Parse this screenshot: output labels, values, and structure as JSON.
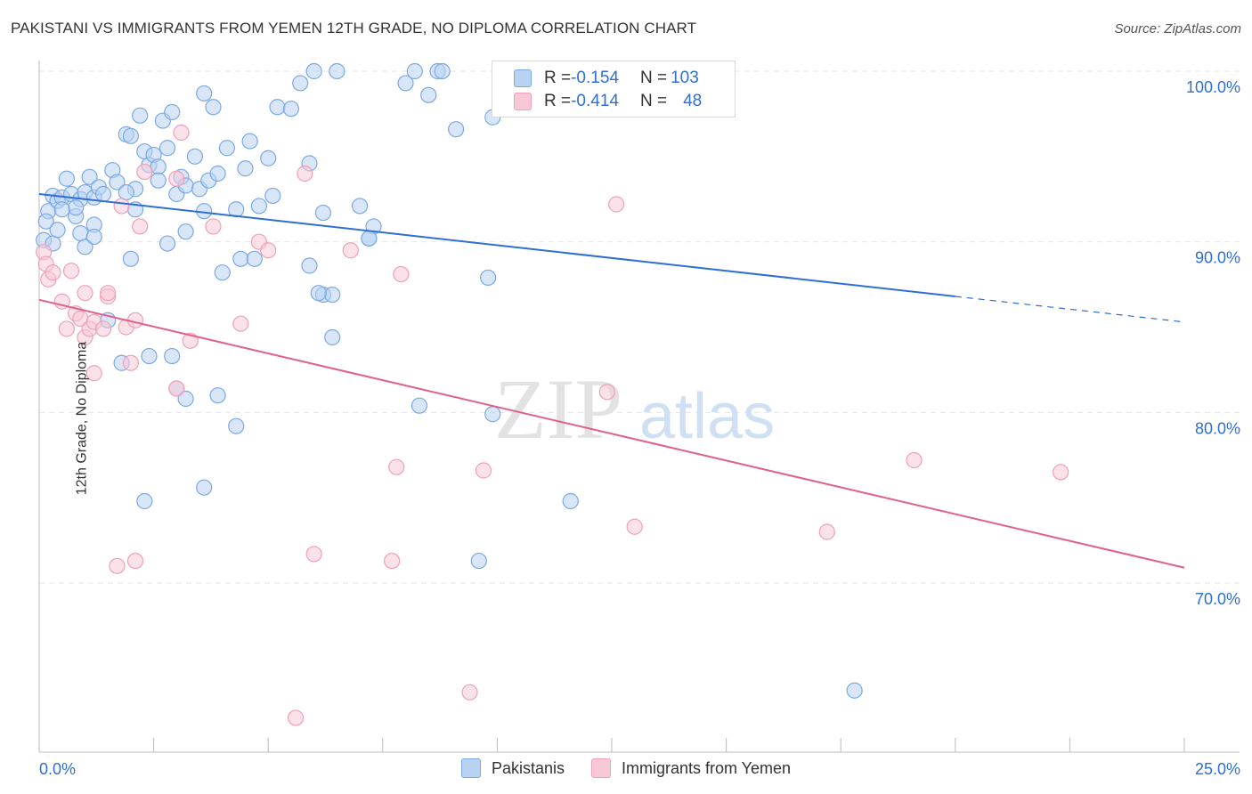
{
  "title": "PAKISTANI VS IMMIGRANTS FROM YEMEN 12TH GRADE, NO DIPLOMA CORRELATION CHART",
  "source": "Source: ZipAtlas.com",
  "watermark": {
    "zip": "ZIP",
    "atlas": "atlas"
  },
  "colors": {
    "blue": "#7aa9e6",
    "blue_fill": "#b8d2f3",
    "blue_line": "#2e6fd6",
    "pink": "#f0a0b8",
    "pink_fill": "#f8c8d6",
    "pink_line": "#e0608a",
    "tick_label": "#2e6fd6"
  },
  "legend": {
    "rows": [
      {
        "r_label": "R = ",
        "r_value": "-0.154",
        "n_label": "N = ",
        "n_value": "103"
      },
      {
        "r_label": "R = ",
        "r_value": "-0.414",
        "n_label": "N = ",
        "n_value": "48"
      }
    ]
  },
  "bottom_legend": [
    "Pakistanis",
    "Immigrants from Yemen"
  ],
  "chart_data": {
    "type": "scatter",
    "title": "PAKISTANI VS IMMIGRANTS FROM YEMEN 12TH GRADE, NO DIPLOMA CORRELATION CHART",
    "xlabel": "",
    "ylabel": "12th Grade, No Diploma",
    "xlim": [
      0,
      25
    ],
    "ylim": [
      61,
      101.5
    ],
    "x_tick_labels": [
      "0.0%",
      "25.0%"
    ],
    "y_ticks": [
      70,
      80,
      90,
      100
    ],
    "y_tick_labels": [
      "70.0%",
      "80.0%",
      "90.0%",
      "100.0%"
    ],
    "grid": true,
    "legend_position": "top-center",
    "series": [
      {
        "name": "Pakistanis",
        "r": -0.154,
        "n": 103,
        "trend": {
          "x0": 0,
          "y0": 92.8,
          "x1": 20,
          "y1": 86.8,
          "dashed_to_x": 25,
          "dashed_to_y": 85.3
        },
        "points": [
          [
            0.1,
            90.1
          ],
          [
            0.2,
            91.8
          ],
          [
            0.3,
            92.7
          ],
          [
            0.4,
            92.4
          ],
          [
            0.5,
            92.6
          ],
          [
            0.6,
            93.7
          ],
          [
            0.7,
            92.8
          ],
          [
            0.8,
            91.5
          ],
          [
            0.9,
            92.5
          ],
          [
            1.0,
            92.9
          ],
          [
            1.1,
            93.8
          ],
          [
            1.2,
            92.6
          ],
          [
            1.3,
            93.2
          ],
          [
            1.4,
            92.8
          ],
          [
            1.6,
            94.2
          ],
          [
            1.7,
            93.5
          ],
          [
            1.9,
            96.3
          ],
          [
            2.0,
            96.2
          ],
          [
            2.1,
            93.1
          ],
          [
            2.2,
            97.4
          ],
          [
            2.3,
            95.3
          ],
          [
            2.4,
            94.5
          ],
          [
            2.5,
            95.1
          ],
          [
            2.6,
            94.4
          ],
          [
            2.7,
            97.1
          ],
          [
            2.8,
            95.5
          ],
          [
            2.9,
            97.6
          ],
          [
            3.0,
            92.8
          ],
          [
            3.1,
            93.8
          ],
          [
            3.2,
            93.3
          ],
          [
            3.4,
            95.0
          ],
          [
            3.5,
            93.1
          ],
          [
            3.6,
            98.7
          ],
          [
            3.7,
            93.6
          ],
          [
            3.8,
            97.9
          ],
          [
            3.9,
            94.0
          ],
          [
            4.1,
            95.5
          ],
          [
            4.3,
            91.9
          ],
          [
            4.5,
            94.3
          ],
          [
            4.6,
            95.9
          ],
          [
            4.8,
            92.1
          ],
          [
            5.0,
            94.9
          ],
          [
            5.1,
            92.7
          ],
          [
            5.2,
            97.9
          ],
          [
            5.5,
            97.8
          ],
          [
            5.7,
            99.3
          ],
          [
            5.9,
            94.6
          ],
          [
            6.0,
            100.0
          ],
          [
            6.2,
            91.7
          ],
          [
            6.5,
            100.0
          ],
          [
            7.0,
            92.1
          ],
          [
            7.3,
            90.9
          ],
          [
            8.0,
            99.3
          ],
          [
            8.2,
            100.0
          ],
          [
            8.5,
            98.6
          ],
          [
            8.7,
            100.0
          ],
          [
            8.8,
            100.0
          ],
          [
            9.1,
            96.6
          ],
          [
            9.9,
            97.3
          ],
          [
            0.15,
            91.2
          ],
          [
            0.3,
            89.9
          ],
          [
            0.4,
            90.7
          ],
          [
            0.9,
            90.5
          ],
          [
            1.0,
            89.7
          ],
          [
            1.2,
            91.0
          ],
          [
            2.0,
            89.0
          ],
          [
            2.1,
            91.9
          ],
          [
            2.8,
            89.9
          ],
          [
            3.2,
            90.6
          ],
          [
            4.0,
            88.2
          ],
          [
            4.4,
            89.0
          ],
          [
            4.7,
            89.0
          ],
          [
            5.9,
            88.6
          ],
          [
            6.2,
            86.9
          ],
          [
            6.4,
            86.9
          ],
          [
            7.2,
            90.2
          ],
          [
            9.8,
            87.9
          ],
          [
            1.5,
            85.4
          ],
          [
            1.8,
            82.9
          ],
          [
            2.4,
            83.3
          ],
          [
            3.0,
            81.4
          ],
          [
            3.2,
            80.8
          ],
          [
            3.9,
            81.0
          ],
          [
            4.3,
            79.2
          ],
          [
            6.4,
            84.4
          ],
          [
            8.3,
            80.4
          ],
          [
            9.9,
            79.9
          ],
          [
            2.3,
            74.8
          ],
          [
            3.6,
            75.6
          ],
          [
            11.6,
            74.8
          ],
          [
            9.6,
            71.3
          ],
          [
            17.8,
            63.7
          ],
          [
            11.8,
            100.0
          ],
          [
            12.4,
            98.4
          ],
          [
            1.2,
            90.3
          ],
          [
            0.8,
            92.0
          ],
          [
            1.9,
            92.9
          ],
          [
            2.6,
            93.6
          ],
          [
            3.6,
            91.8
          ],
          [
            0.5,
            91.9
          ],
          [
            7.2,
            90.2
          ],
          [
            6.1,
            87.0
          ],
          [
            2.9,
            83.3
          ]
        ]
      },
      {
        "name": "Immigrants from Yemen",
        "r": -0.414,
        "n": 48,
        "trend": {
          "x0": 0,
          "y0": 86.6,
          "x1": 25,
          "y1": 70.9
        },
        "points": [
          [
            0.1,
            89.4
          ],
          [
            0.15,
            88.7
          ],
          [
            0.2,
            87.8
          ],
          [
            0.3,
            88.2
          ],
          [
            0.5,
            86.5
          ],
          [
            0.6,
            84.9
          ],
          [
            0.7,
            88.3
          ],
          [
            0.8,
            85.8
          ],
          [
            0.9,
            85.5
          ],
          [
            1.0,
            84.4
          ],
          [
            1.0,
            87.0
          ],
          [
            1.1,
            84.9
          ],
          [
            1.2,
            85.3
          ],
          [
            1.2,
            82.3
          ],
          [
            1.4,
            84.9
          ],
          [
            1.5,
            86.8
          ],
          [
            1.5,
            87.0
          ],
          [
            1.8,
            92.1
          ],
          [
            1.9,
            85.0
          ],
          [
            2.0,
            82.9
          ],
          [
            2.1,
            85.4
          ],
          [
            2.2,
            90.9
          ],
          [
            2.3,
            94.1
          ],
          [
            3.0,
            81.4
          ],
          [
            3.0,
            93.7
          ],
          [
            3.1,
            96.4
          ],
          [
            3.3,
            84.2
          ],
          [
            3.8,
            90.9
          ],
          [
            4.4,
            85.2
          ],
          [
            4.8,
            90.0
          ],
          [
            5.0,
            89.5
          ],
          [
            5.8,
            94.0
          ],
          [
            6.8,
            89.5
          ],
          [
            7.8,
            76.8
          ],
          [
            7.9,
            88.1
          ],
          [
            9.7,
            76.6
          ],
          [
            12.4,
            81.2
          ],
          [
            12.6,
            92.2
          ],
          [
            13.0,
            73.3
          ],
          [
            17.2,
            73.0
          ],
          [
            19.1,
            77.2
          ],
          [
            22.3,
            76.5
          ],
          [
            1.7,
            71.0
          ],
          [
            2.1,
            71.3
          ],
          [
            6.0,
            71.7
          ],
          [
            7.7,
            71.3
          ],
          [
            9.4,
            63.6
          ],
          [
            5.6,
            62.1
          ]
        ]
      }
    ]
  }
}
